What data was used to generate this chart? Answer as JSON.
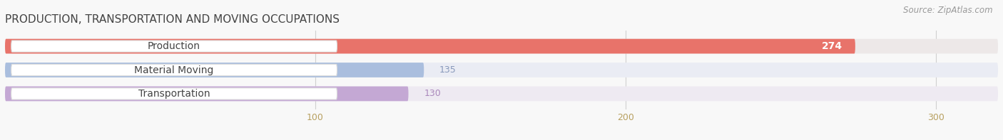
{
  "title": "PRODUCTION, TRANSPORTATION AND MOVING OCCUPATIONS",
  "source": "Source: ZipAtlas.com",
  "categories": [
    "Production",
    "Material Moving",
    "Transportation"
  ],
  "values": [
    274,
    135,
    130
  ],
  "bar_colors": [
    "#e8736a",
    "#aabede",
    "#c4a8d4"
  ],
  "bar_bg_colors": [
    "#ede8e8",
    "#eaecf4",
    "#eeeaf2"
  ],
  "label_bg_colors": [
    "#fde8e6",
    "#dce8f6",
    "#e8d8f0"
  ],
  "value_text_colors": [
    "#ffffff",
    "#8899bb",
    "#aa88bb"
  ],
  "value_inside": [
    true,
    false,
    false
  ],
  "tick_color": "#b8a060",
  "xlim_max": 320,
  "xticks": [
    100,
    200,
    300
  ],
  "bar_height": 0.62,
  "figsize": [
    14.06,
    1.97
  ],
  "dpi": 100,
  "title_fontsize": 11,
  "label_fontsize": 10,
  "value_fontsize": 9,
  "tick_fontsize": 9,
  "bg_color": "#f8f8f8"
}
